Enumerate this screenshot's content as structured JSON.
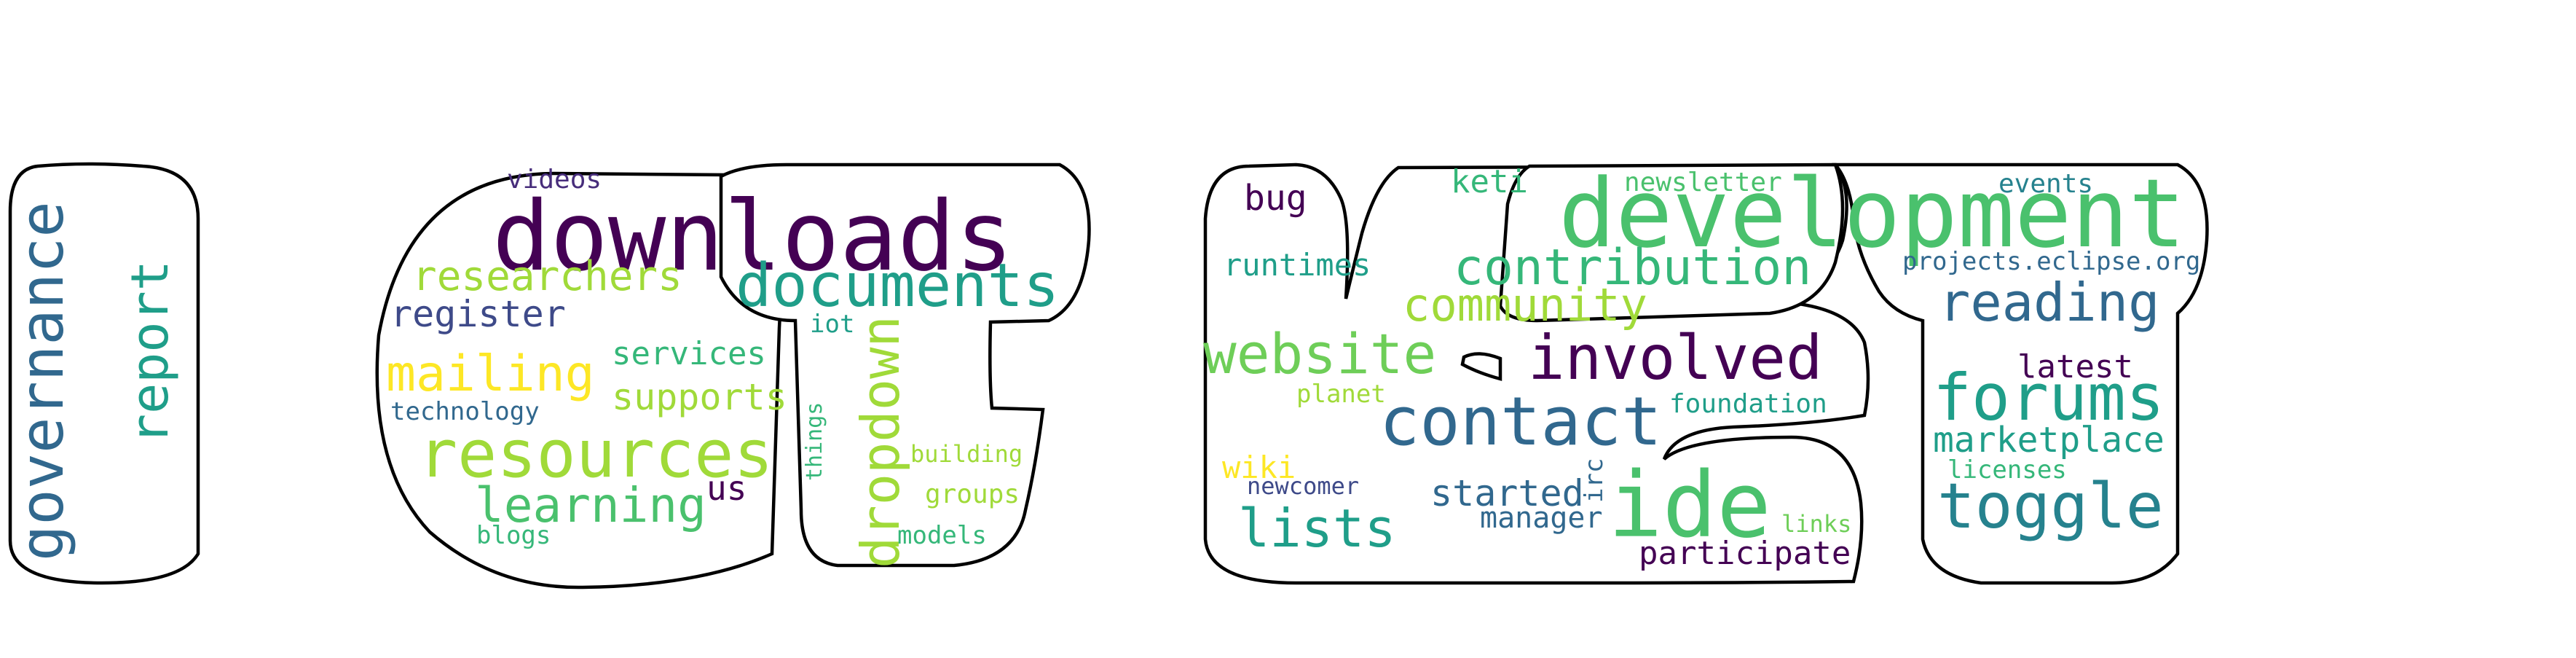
{
  "palette": {
    "dark_purple": "#440154",
    "indigo": "#3e4a89",
    "steel_blue": "#31688e",
    "teal_blue": "#26828e",
    "teal": "#1f9e89",
    "sea_green": "#35b779",
    "green": "#4ac16d",
    "light_green": "#6ece58",
    "yellow_green": "#a0da39",
    "yellow": "#fde725"
  },
  "words": [
    {
      "text": "governance",
      "color": "#31688e"
    },
    {
      "text": "report",
      "color": "#1f9e89"
    },
    {
      "text": "downloads",
      "color": "#440154"
    },
    {
      "text": "documents",
      "color": "#1f9e89"
    },
    {
      "text": "videos",
      "color": "#472d7b"
    },
    {
      "text": "researchers",
      "color": "#a0da39"
    },
    {
      "text": "register",
      "color": "#3e4a89"
    },
    {
      "text": "mailing",
      "color": "#fde725"
    },
    {
      "text": "services",
      "color": "#35b779"
    },
    {
      "text": "supports",
      "color": "#a0da39"
    },
    {
      "text": "technology",
      "color": "#31688e"
    },
    {
      "text": "resources",
      "color": "#a0da39"
    },
    {
      "text": "learning",
      "color": "#4ac16d"
    },
    {
      "text": "us",
      "color": "#440154"
    },
    {
      "text": "blogs",
      "color": "#35b779"
    },
    {
      "text": "iot",
      "color": "#1f9e89"
    },
    {
      "text": "things",
      "color": "#35b779"
    },
    {
      "text": "dropdown",
      "color": "#a0da39"
    },
    {
      "text": "building",
      "color": "#a0da39"
    },
    {
      "text": "groups",
      "color": "#a0da39"
    },
    {
      "text": "models",
      "color": "#35b779"
    },
    {
      "text": "bug",
      "color": "#440154"
    },
    {
      "text": "runtimes",
      "color": "#1f9e89"
    },
    {
      "text": "keti",
      "color": "#35b779"
    },
    {
      "text": "newsletter",
      "color": "#4ac16d"
    },
    {
      "text": "events",
      "color": "#26828e"
    },
    {
      "text": "development",
      "color": "#4ac16d"
    },
    {
      "text": "contribution",
      "color": "#35b779"
    },
    {
      "text": "projects.eclipse.org",
      "color": "#31688e"
    },
    {
      "text": "community",
      "color": "#a0da39"
    },
    {
      "text": "reading",
      "color": "#31688e"
    },
    {
      "text": "website",
      "color": "#6ece58"
    },
    {
      "text": "involved",
      "color": "#440154"
    },
    {
      "text": "latest",
      "color": "#440154"
    },
    {
      "text": "planet",
      "color": "#a0da39"
    },
    {
      "text": "foundation",
      "color": "#1f9e89"
    },
    {
      "text": "forums",
      "color": "#1f9e89"
    },
    {
      "text": "contact",
      "color": "#31688e"
    },
    {
      "text": "marketplace",
      "color": "#1f9e89"
    },
    {
      "text": "wiki",
      "color": "#fde725"
    },
    {
      "text": "newcomer",
      "color": "#3e4a89"
    },
    {
      "text": "licenses",
      "color": "#35b779"
    },
    {
      "text": "started",
      "color": "#31688e"
    },
    {
      "text": "irc",
      "color": "#31688e"
    },
    {
      "text": "ide",
      "color": "#4ac16d"
    },
    {
      "text": "lists",
      "color": "#1f9e89"
    },
    {
      "text": "manager",
      "color": "#31688e"
    },
    {
      "text": "links",
      "color": "#6ece58"
    },
    {
      "text": "toggle",
      "color": "#26828e"
    },
    {
      "text": "participate",
      "color": "#440154"
    }
  ]
}
